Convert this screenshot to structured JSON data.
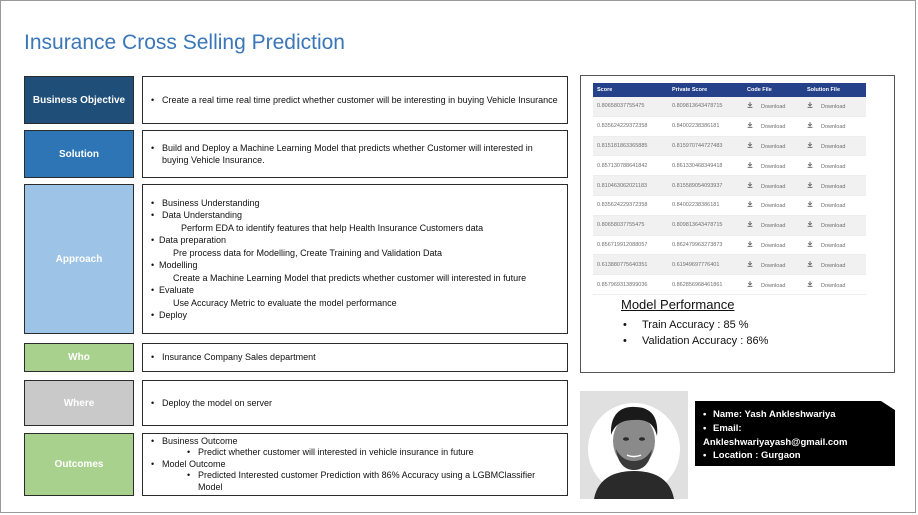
{
  "title": "Insurance Cross Selling Prediction",
  "colors": {
    "title": "#3a76b8",
    "business_objective": "#1f4e79",
    "solution": "#2e75b6",
    "approach": "#9dc3e6",
    "who": "#a9d18e",
    "where": "#c9c9c9",
    "outcomes": "#a9d18e",
    "table_header": "#24418a",
    "contact_bg": "#000000"
  },
  "sections": {
    "business_objective": {
      "label": "Business Objective",
      "text": "Create a real time real time predict whether customer will be interesting in buying Vehicle Insurance"
    },
    "solution": {
      "label": "Solution",
      "text": "Build and Deploy a Machine Learning Model that predicts whether Customer will interested in buying Vehicle Insurance."
    },
    "approach": {
      "label": "Approach",
      "items": [
        "Business Understanding",
        "Data Understanding",
        "Perform EDA to identify features that help Health Insurance Customers data",
        "Data preparation",
        "Pre process data for Modelling, Create Training and Validation Data",
        "Modelling",
        "Create a Machine Learning Model that predicts whether customer will interested in future",
        "Evaluate",
        "Use Accuracy Metric to evaluate the model performance",
        "Deploy"
      ]
    },
    "who": {
      "label": "Who",
      "text": "Insurance Company Sales department"
    },
    "where": {
      "label": "Where",
      "text": "Deploy the model on server"
    },
    "outcomes": {
      "label": "Outcomes",
      "items": [
        "Business Outcome",
        "Predict whether customer will interested in vehicle insurance in future",
        "Model Outcome",
        "Predicted Interested customer Prediction with 86% Accuracy using a LGBMClassifier Model"
      ]
    }
  },
  "leaderboard": {
    "headers": [
      "Score",
      "Private Score",
      "Code File",
      "Solution File"
    ],
    "download_label": "Download",
    "download_icon": "download-icon",
    "rows": [
      [
        "0.80658037755475",
        "0.809813643478715"
      ],
      [
        "0.835624229372358",
        "0.84002238386181"
      ],
      [
        "0.815181863365885",
        "0.815970744727483"
      ],
      [
        "0.857130788641842",
        "0.861330468349418"
      ],
      [
        "0.810463062021183",
        "0.815589054093937"
      ],
      [
        "0.835624229372358",
        "0.84002238386181"
      ],
      [
        "0.80658037755475",
        "0.809813643478715"
      ],
      [
        "0.856719912088057",
        "0.862479963273873"
      ],
      [
        "0.613880775640351",
        "0.61949697776401"
      ],
      [
        "0.857969313899036",
        "0.862856968461861"
      ]
    ]
  },
  "model_performance": {
    "title": "Model Performance",
    "train": "Train Accuracy : 85 %",
    "validation": "Validation Accuracy : 86%"
  },
  "contact": {
    "name": "Name: Yash Ankleshwariya",
    "email_label": "Email:",
    "email": "Ankleshwariyayash@gmail.com",
    "location": "Location : Gurgaon"
  }
}
